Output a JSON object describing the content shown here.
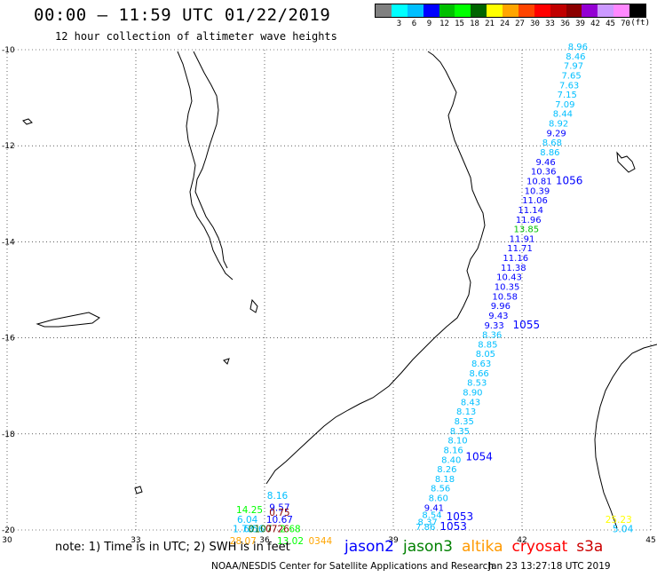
{
  "header": {
    "title": "00:00 – 11:59 UTC 01/22/2019",
    "subtitle": "12 hour collection of altimeter wave heights"
  },
  "legend": {
    "colors": [
      "#808080",
      "#00ffff",
      "#00bfff",
      "#0000ff",
      "#00c000",
      "#00ff00",
      "#006400",
      "#ffff00",
      "#ffa500",
      "#ff4500",
      "#ff0000",
      "#c00000",
      "#8b0000",
      "#9400d3",
      "#cc99ff",
      "#ff88ff",
      "#000000"
    ],
    "labels": [
      "3",
      "6",
      "9",
      "12",
      "15",
      "18",
      "21",
      "24",
      "27",
      "30",
      "33",
      "36",
      "39",
      "42",
      "45",
      "70"
    ],
    "unit": "(ft)"
  },
  "axes": {
    "lon_labels": [
      "30",
      "33",
      "36",
      "39",
      "42",
      "45"
    ],
    "lat_labels": [
      "-10",
      "-12",
      "-14",
      "-16",
      "-18",
      "-20"
    ]
  },
  "chart_data": {
    "type": "scatter",
    "title": "00:00 – 11:59 UTC 01/22/2019",
    "xlim": [
      30,
      45
    ],
    "ylim": [
      -20,
      -10
    ],
    "grid": "dotted",
    "track_values": [
      {
        "lon": 43.3,
        "lat": -10.0,
        "v": "8.96",
        "c": "#00bfff"
      },
      {
        "lon": 43.25,
        "lat": -10.2,
        "v": "8.46",
        "c": "#00bfff"
      },
      {
        "lon": 43.2,
        "lat": -10.4,
        "v": "7.97",
        "c": "#00bfff"
      },
      {
        "lon": 43.15,
        "lat": -10.6,
        "v": "7.65",
        "c": "#00bfff"
      },
      {
        "lon": 43.1,
        "lat": -10.8,
        "v": "7.63",
        "c": "#00bfff"
      },
      {
        "lon": 43.05,
        "lat": -11.0,
        "v": "7.15",
        "c": "#00bfff"
      },
      {
        "lon": 43.0,
        "lat": -11.2,
        "v": "7.09",
        "c": "#00bfff"
      },
      {
        "lon": 42.95,
        "lat": -11.4,
        "v": "8.44",
        "c": "#00bfff"
      },
      {
        "lon": 42.85,
        "lat": -11.6,
        "v": "8.92",
        "c": "#00bfff"
      },
      {
        "lon": 42.8,
        "lat": -11.8,
        "v": "9.29",
        "c": "#0000ff"
      },
      {
        "lon": 42.7,
        "lat": -12.0,
        "v": "8.68",
        "c": "#00bfff"
      },
      {
        "lon": 42.65,
        "lat": -12.2,
        "v": "8.86",
        "c": "#00bfff"
      },
      {
        "lon": 42.55,
        "lat": -12.4,
        "v": "9.46",
        "c": "#0000ff"
      },
      {
        "lon": 42.5,
        "lat": -12.6,
        "v": "10.36",
        "c": "#0000ff"
      },
      {
        "lon": 42.4,
        "lat": -12.8,
        "v": "10.81",
        "c": "#0000ff"
      },
      {
        "lon": 42.35,
        "lat": -13.0,
        "v": "10.39",
        "c": "#0000ff"
      },
      {
        "lon": 42.3,
        "lat": -13.2,
        "v": "11.06",
        "c": "#0000ff"
      },
      {
        "lon": 42.2,
        "lat": -13.4,
        "v": "11.14",
        "c": "#0000ff"
      },
      {
        "lon": 42.15,
        "lat": -13.6,
        "v": "11.96",
        "c": "#0000ff"
      },
      {
        "lon": 42.1,
        "lat": -13.8,
        "v": "13.85",
        "c": "#00c000"
      },
      {
        "lon": 42.0,
        "lat": -14.0,
        "v": "11.91",
        "c": "#0000ff"
      },
      {
        "lon": 41.95,
        "lat": -14.2,
        "v": "11.71",
        "c": "#0000ff"
      },
      {
        "lon": 41.85,
        "lat": -14.4,
        "v": "11.16",
        "c": "#0000ff"
      },
      {
        "lon": 41.8,
        "lat": -14.6,
        "v": "11.38",
        "c": "#0000ff"
      },
      {
        "lon": 41.7,
        "lat": -14.8,
        "v": "10.43",
        "c": "#0000ff"
      },
      {
        "lon": 41.65,
        "lat": -15.0,
        "v": "10.35",
        "c": "#0000ff"
      },
      {
        "lon": 41.6,
        "lat": -15.2,
        "v": "10.58",
        "c": "#0000ff"
      },
      {
        "lon": 41.5,
        "lat": -15.4,
        "v": "9.96",
        "c": "#0000ff"
      },
      {
        "lon": 41.45,
        "lat": -15.6,
        "v": "9.43",
        "c": "#0000ff"
      },
      {
        "lon": 41.35,
        "lat": -15.8,
        "v": "9.33",
        "c": "#0000ff"
      },
      {
        "lon": 41.3,
        "lat": -16.0,
        "v": "8.36",
        "c": "#00bfff"
      },
      {
        "lon": 41.2,
        "lat": -16.2,
        "v": "8.85",
        "c": "#00bfff"
      },
      {
        "lon": 41.15,
        "lat": -16.4,
        "v": "8.05",
        "c": "#00bfff"
      },
      {
        "lon": 41.05,
        "lat": -16.6,
        "v": "8.63",
        "c": "#00bfff"
      },
      {
        "lon": 41.0,
        "lat": -16.8,
        "v": "8.66",
        "c": "#00bfff"
      },
      {
        "lon": 40.95,
        "lat": -17.0,
        "v": "8.53",
        "c": "#00bfff"
      },
      {
        "lon": 40.85,
        "lat": -17.2,
        "v": "8.90",
        "c": "#00bfff"
      },
      {
        "lon": 40.8,
        "lat": -17.4,
        "v": "8.43",
        "c": "#00bfff"
      },
      {
        "lon": 40.7,
        "lat": -17.6,
        "v": "8.13",
        "c": "#00bfff"
      },
      {
        "lon": 40.65,
        "lat": -17.8,
        "v": "8.35",
        "c": "#00bfff"
      },
      {
        "lon": 40.55,
        "lat": -18.0,
        "v": "8.35",
        "c": "#00bfff"
      },
      {
        "lon": 40.5,
        "lat": -18.2,
        "v": "8.10",
        "c": "#00bfff"
      },
      {
        "lon": 40.4,
        "lat": -18.4,
        "v": "8.16",
        "c": "#00bfff"
      },
      {
        "lon": 40.35,
        "lat": -18.6,
        "v": "8.40",
        "c": "#00bfff"
      },
      {
        "lon": 40.25,
        "lat": -18.8,
        "v": "8.26",
        "c": "#00bfff"
      },
      {
        "lon": 40.2,
        "lat": -19.0,
        "v": "8.18",
        "c": "#00bfff"
      },
      {
        "lon": 40.1,
        "lat": -19.2,
        "v": "8.56",
        "c": "#00bfff"
      },
      {
        "lon": 40.05,
        "lat": -19.4,
        "v": "8.60",
        "c": "#00bfff"
      },
      {
        "lon": 39.95,
        "lat": -19.6,
        "v": "9.41",
        "c": "#0000ff"
      },
      {
        "lon": 39.9,
        "lat": -19.75,
        "v": "8.54",
        "c": "#00bfff"
      },
      {
        "lon": 39.8,
        "lat": -19.9,
        "v": "8.37",
        "c": "#00bfff"
      },
      {
        "lon": 39.75,
        "lat": -20.0,
        "v": "7.86",
        "c": "#00bfff"
      }
    ],
    "time_labels": [
      {
        "lon": 43.1,
        "lat": -12.8,
        "v": "1056",
        "c": "#0000ff"
      },
      {
        "lon": 42.1,
        "lat": -15.8,
        "v": "1055",
        "c": "#0000ff"
      },
      {
        "lon": 41.0,
        "lat": -18.55,
        "v": "1054",
        "c": "#0000ff"
      },
      {
        "lon": 40.55,
        "lat": -19.8,
        "v": "1053",
        "c": "#0000ff"
      },
      {
        "lon": 40.4,
        "lat": -20.0,
        "v": "1053",
        "c": "#0000ff"
      }
    ],
    "coastal_values": [
      {
        "lon": 36.3,
        "lat": -19.35,
        "v": "8.16",
        "c": "#00bfff"
      },
      {
        "lon": 35.65,
        "lat": -19.65,
        "v": "14.25",
        "c": "#00ff00"
      },
      {
        "lon": 36.35,
        "lat": -19.6,
        "v": "9.57",
        "c": "#0000ff"
      },
      {
        "lon": 36.35,
        "lat": -19.7,
        "v": "0.75",
        "c": "#8b0000"
      },
      {
        "lon": 35.6,
        "lat": -19.85,
        "v": "6.04",
        "c": "#00bfff"
      },
      {
        "lon": 36.35,
        "lat": -19.85,
        "v": "10.67",
        "c": "#0000ff"
      },
      {
        "lon": 35.5,
        "lat": -20.05,
        "v": "1.73",
        "c": "#00bfff"
      },
      {
        "lon": 35.75,
        "lat": -20.05,
        "v": "6.56",
        "c": "#00bfff"
      },
      {
        "lon": 35.9,
        "lat": -20.05,
        "v": "0107",
        "c": "#006400"
      },
      {
        "lon": 36.3,
        "lat": -20.05,
        "v": "0726",
        "c": "#8b0000"
      },
      {
        "lon": 36.6,
        "lat": -20.05,
        "v": "2.68",
        "c": "#00ff00"
      },
      {
        "lon": 35.5,
        "lat": -20.3,
        "v": "28.07",
        "c": "#ffa500"
      },
      {
        "lon": 36.6,
        "lat": -20.3,
        "v": "13.02",
        "c": "#00ff00"
      },
      {
        "lon": 37.3,
        "lat": -20.3,
        "v": "0344",
        "c": "#ffa500"
      },
      {
        "lon": 44.25,
        "lat": -19.85,
        "v": "25.23",
        "c": "#ffff00"
      },
      {
        "lon": 44.35,
        "lat": -20.05,
        "v": "5.04",
        "c": "#00bfff"
      }
    ]
  },
  "footer": {
    "note": "note: 1) Time is in UTC; 2) SWH is in feet",
    "satellites": [
      {
        "name": "jason2",
        "color": "#0000ff"
      },
      {
        "name": "jason3",
        "color": "#008000"
      },
      {
        "name": "altika",
        "color": "#ff9900"
      },
      {
        "name": "cryosat",
        "color": "#ff0000"
      },
      {
        "name": "s3a",
        "color": "#cc0000"
      }
    ],
    "credit": "NOAA/NESDIS Center for Satellite Applications and Research",
    "timestamp": "Jan 23 13:27:18 UTC 2019"
  }
}
